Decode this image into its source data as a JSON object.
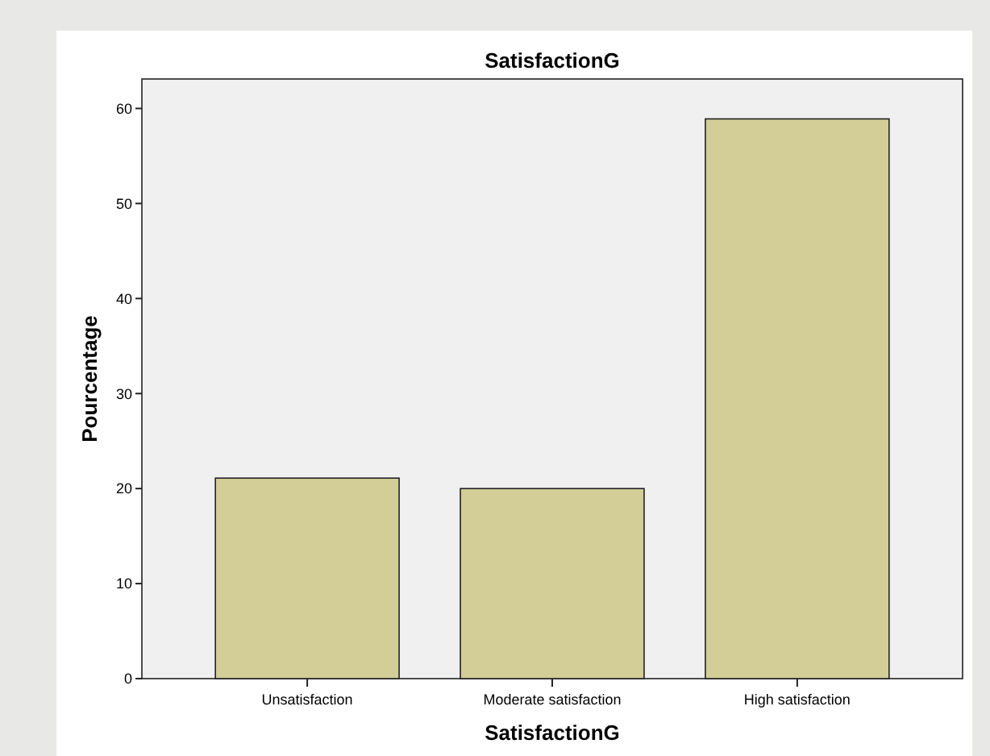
{
  "chart_data": {
    "type": "bar",
    "title": "SatisfactionG",
    "xlabel": "SatisfactionG",
    "ylabel": "Pourcentage",
    "categories": [
      "Unsatisfaction",
      "Moderate satisfaction",
      "High satisfaction"
    ],
    "values": [
      21.1,
      20,
      58.9
    ],
    "color": "#d3ce98",
    "ylim": [
      0,
      63.1
    ],
    "yticks": [
      0,
      10,
      20,
      30,
      40,
      50,
      60
    ],
    "grid": false
  }
}
